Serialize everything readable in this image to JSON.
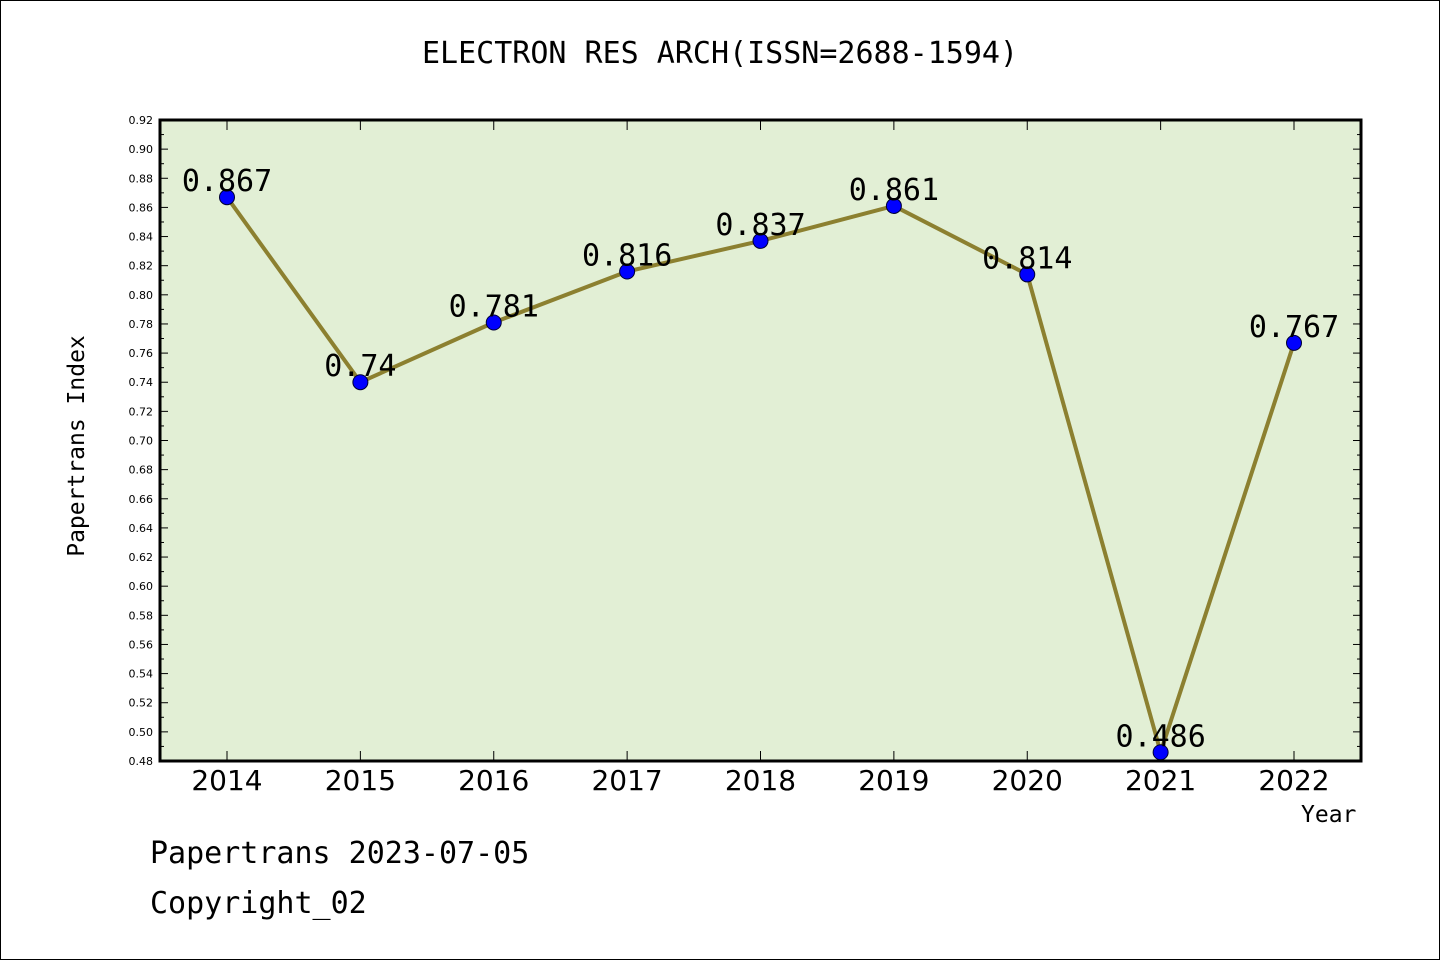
{
  "chart_data": {
    "type": "line",
    "title": "ELECTRON RES ARCH(ISSN=2688-1594)",
    "xlabel": "Year",
    "ylabel": "Papertrans Index",
    "categories": [
      "2014",
      "2015",
      "2016",
      "2017",
      "2018",
      "2019",
      "2020",
      "2021",
      "2022"
    ],
    "series": [
      {
        "values": [
          0.867,
          0.74,
          0.781,
          0.816,
          0.837,
          0.861,
          0.814,
          0.486,
          0.767
        ],
        "data_labels": [
          "0.867",
          "0.74",
          "0.781",
          "0.816",
          "0.837",
          "0.861",
          "0.814",
          "0.486",
          "0.767"
        ]
      }
    ],
    "ylim": [
      0.48,
      0.92
    ],
    "yticks": [
      "0.48",
      "0.50",
      "0.52",
      "0.54",
      "0.56",
      "0.58",
      "0.60",
      "0.62",
      "0.64",
      "0.66",
      "0.68",
      "0.70",
      "0.72",
      "0.74",
      "0.76",
      "0.78",
      "0.80",
      "0.82",
      "0.84",
      "0.86",
      "0.88",
      "0.90",
      "0.92"
    ],
    "grid": false,
    "colors": {
      "plot_background": "#e2efd5",
      "line": "#8c8030",
      "marker": "#0000ff"
    }
  },
  "footer": {
    "source": "Papertrans 2023-07-05",
    "copyright": "Copyright_02"
  }
}
